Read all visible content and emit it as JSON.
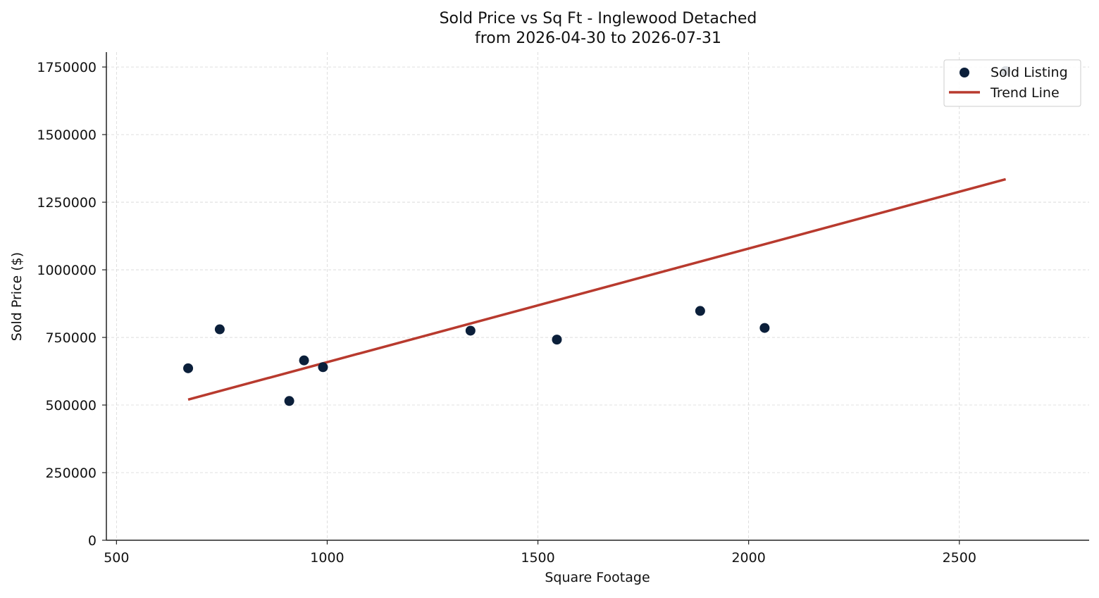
{
  "chart_data": {
    "type": "scatter",
    "title": "Sold Price vs Sq Ft - Inglewood Detached",
    "subtitle": "from 2026-04-30 to 2026-07-31",
    "xlabel": "Square Footage",
    "ylabel": "Sold Price ($)",
    "xlim": [
      476,
      2808
    ],
    "ylim": [
      0,
      1805000
    ],
    "x_ticks": [
      500,
      1000,
      1500,
      2000,
      2500
    ],
    "x_tick_labels": [
      "500",
      "1000",
      "1500",
      "2000",
      "2500"
    ],
    "y_ticks": [
      0,
      250000,
      500000,
      750000,
      1000000,
      1250000,
      1500000,
      1750000
    ],
    "y_tick_labels": [
      "0",
      "250000",
      "500000",
      "750000",
      "1000000",
      "1250000",
      "1500000",
      "1750000"
    ],
    "grid": true,
    "legend_position": "top-right",
    "series": [
      {
        "name": "Sold Listing",
        "kind": "scatter",
        "color": "#0b1f3a",
        "points": [
          {
            "x": 670,
            "y": 636000
          },
          {
            "x": 745,
            "y": 780000
          },
          {
            "x": 910,
            "y": 515000
          },
          {
            "x": 945,
            "y": 665000
          },
          {
            "x": 990,
            "y": 640000
          },
          {
            "x": 1340,
            "y": 775000
          },
          {
            "x": 1545,
            "y": 742000
          },
          {
            "x": 1885,
            "y": 848000
          },
          {
            "x": 2038,
            "y": 785000
          },
          {
            "x": 2610,
            "y": 1735000
          }
        ]
      },
      {
        "name": "Trend Line",
        "kind": "line",
        "color": "#b83a2e",
        "points": [
          {
            "x": 670,
            "y": 520000
          },
          {
            "x": 2610,
            "y": 1335000
          }
        ]
      }
    ]
  }
}
